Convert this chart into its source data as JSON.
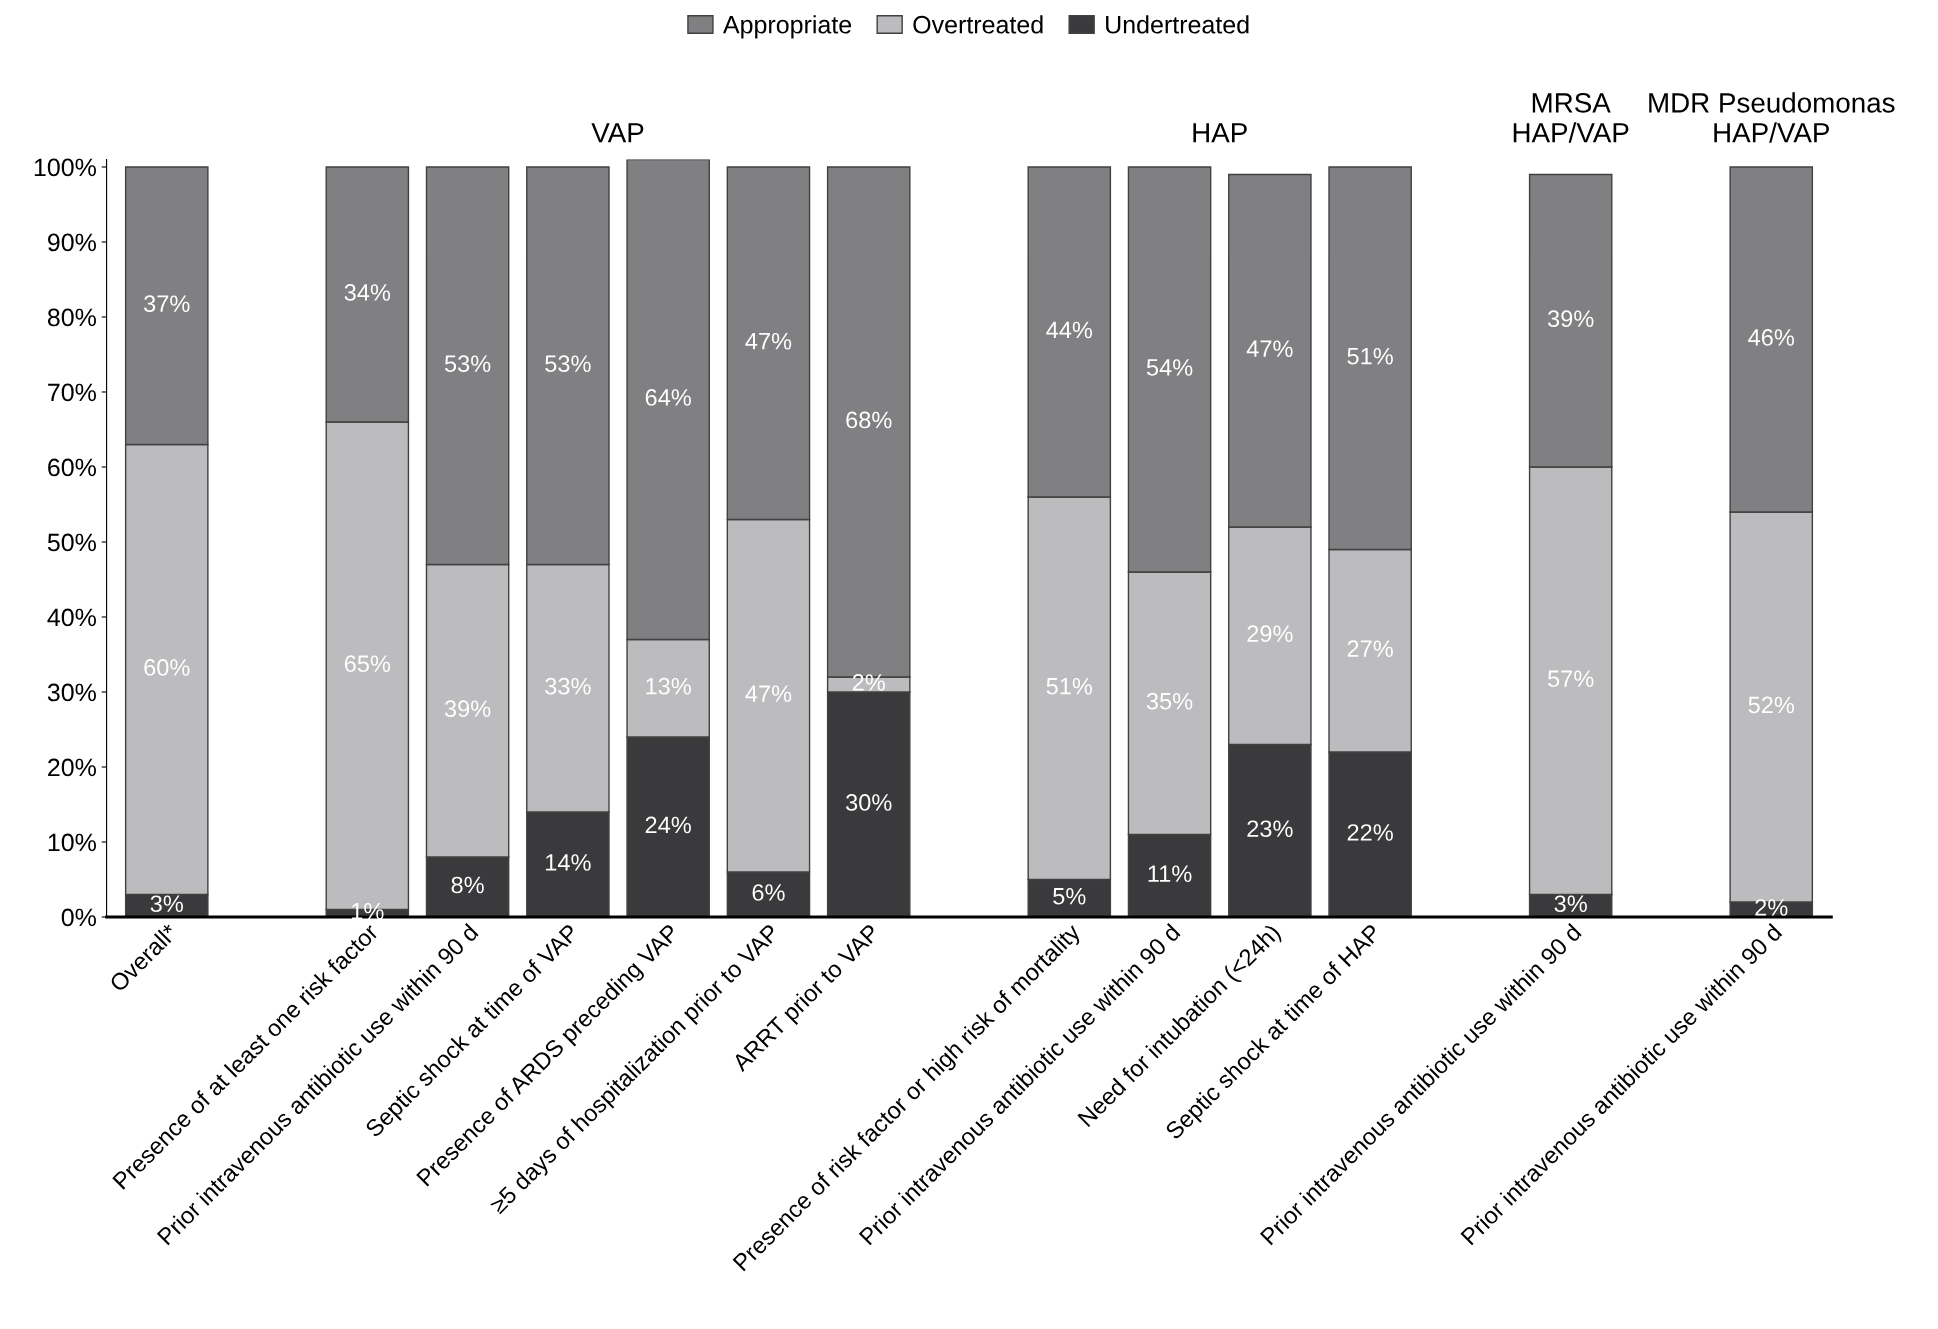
{
  "chart_data": {
    "type": "bar",
    "stacked": true,
    "categories": [
      "Overall*",
      null,
      "Presence of at least one risk factor",
      "Prior intravenous antibiotic use within 90 d",
      "Septic shock at time of VAP",
      "Presence of ARDS preceding VAP",
      "≥5 days of hospitalization prior to VAP",
      "ARRT prior to VAP",
      null,
      "Presence of risk factor or high risk of mortality",
      "Prior intravenous antibiotic use within 90 d",
      "Need for intubation (<24h)",
      "Septic shock at time of HAP",
      null,
      "Prior intravenous antibiotic use within 90 d",
      null,
      "Prior intravenous antibiotic use within 90 d"
    ],
    "series": [
      {
        "name": "Undertreated",
        "color": "#3a3a3c",
        "values": [
          3,
          null,
          1,
          8,
          14,
          24,
          6,
          30,
          null,
          5,
          11,
          23,
          22,
          null,
          3,
          null,
          2
        ],
        "value_labels": [
          "3%",
          null,
          "1%",
          "8%",
          "14%",
          "24%",
          "6%",
          "30%",
          null,
          "5%",
          "11%",
          "23%",
          "22%",
          null,
          "3%",
          null,
          "2%"
        ]
      },
      {
        "name": "Overtreated",
        "color": "#bcbcbf",
        "values": [
          60,
          null,
          65,
          39,
          33,
          13,
          47,
          2,
          null,
          51,
          35,
          29,
          27,
          null,
          57,
          null,
          52
        ],
        "value_labels": [
          "60%",
          null,
          "65%",
          "39%",
          "33%",
          "13%",
          "47%",
          "2%",
          null,
          "51%",
          "35%",
          "29%",
          "27%",
          null,
          "57%",
          null,
          "52%"
        ]
      },
      {
        "name": "Appropriate",
        "color": "#808083",
        "values": [
          37,
          null,
          34,
          53,
          53,
          64,
          47,
          68,
          null,
          44,
          54,
          47,
          51,
          null,
          39,
          null,
          46
        ],
        "value_labels": [
          "37%",
          null,
          "34%",
          "53%",
          "53%",
          "64%",
          "47%",
          "68%",
          null,
          "44%",
          "54%",
          "47%",
          "51%",
          null,
          "39%",
          null,
          "46%"
        ]
      }
    ],
    "ylim": [
      0,
      101
    ],
    "yticks": [
      {
        "value": 0,
        "label": "0%"
      },
      {
        "value": 10,
        "label": "10%"
      },
      {
        "value": 20,
        "label": "20%"
      },
      {
        "value": 30,
        "label": "30%"
      },
      {
        "value": 40,
        "label": "40%"
      },
      {
        "value": 50,
        "label": "50%"
      },
      {
        "value": 60,
        "label": "60%"
      },
      {
        "value": 70,
        "label": "70%"
      },
      {
        "value": 80,
        "label": "80%"
      },
      {
        "value": 90,
        "label": "90%"
      },
      {
        "value": 100,
        "label": "100%"
      }
    ],
    "annotations": [
      "VAP",
      "HAP",
      "MRSA\nHAP/VAP",
      "MDR Pseudomonas\nHAP/VAP"
    ],
    "legend": "top",
    "grid": false
  }
}
